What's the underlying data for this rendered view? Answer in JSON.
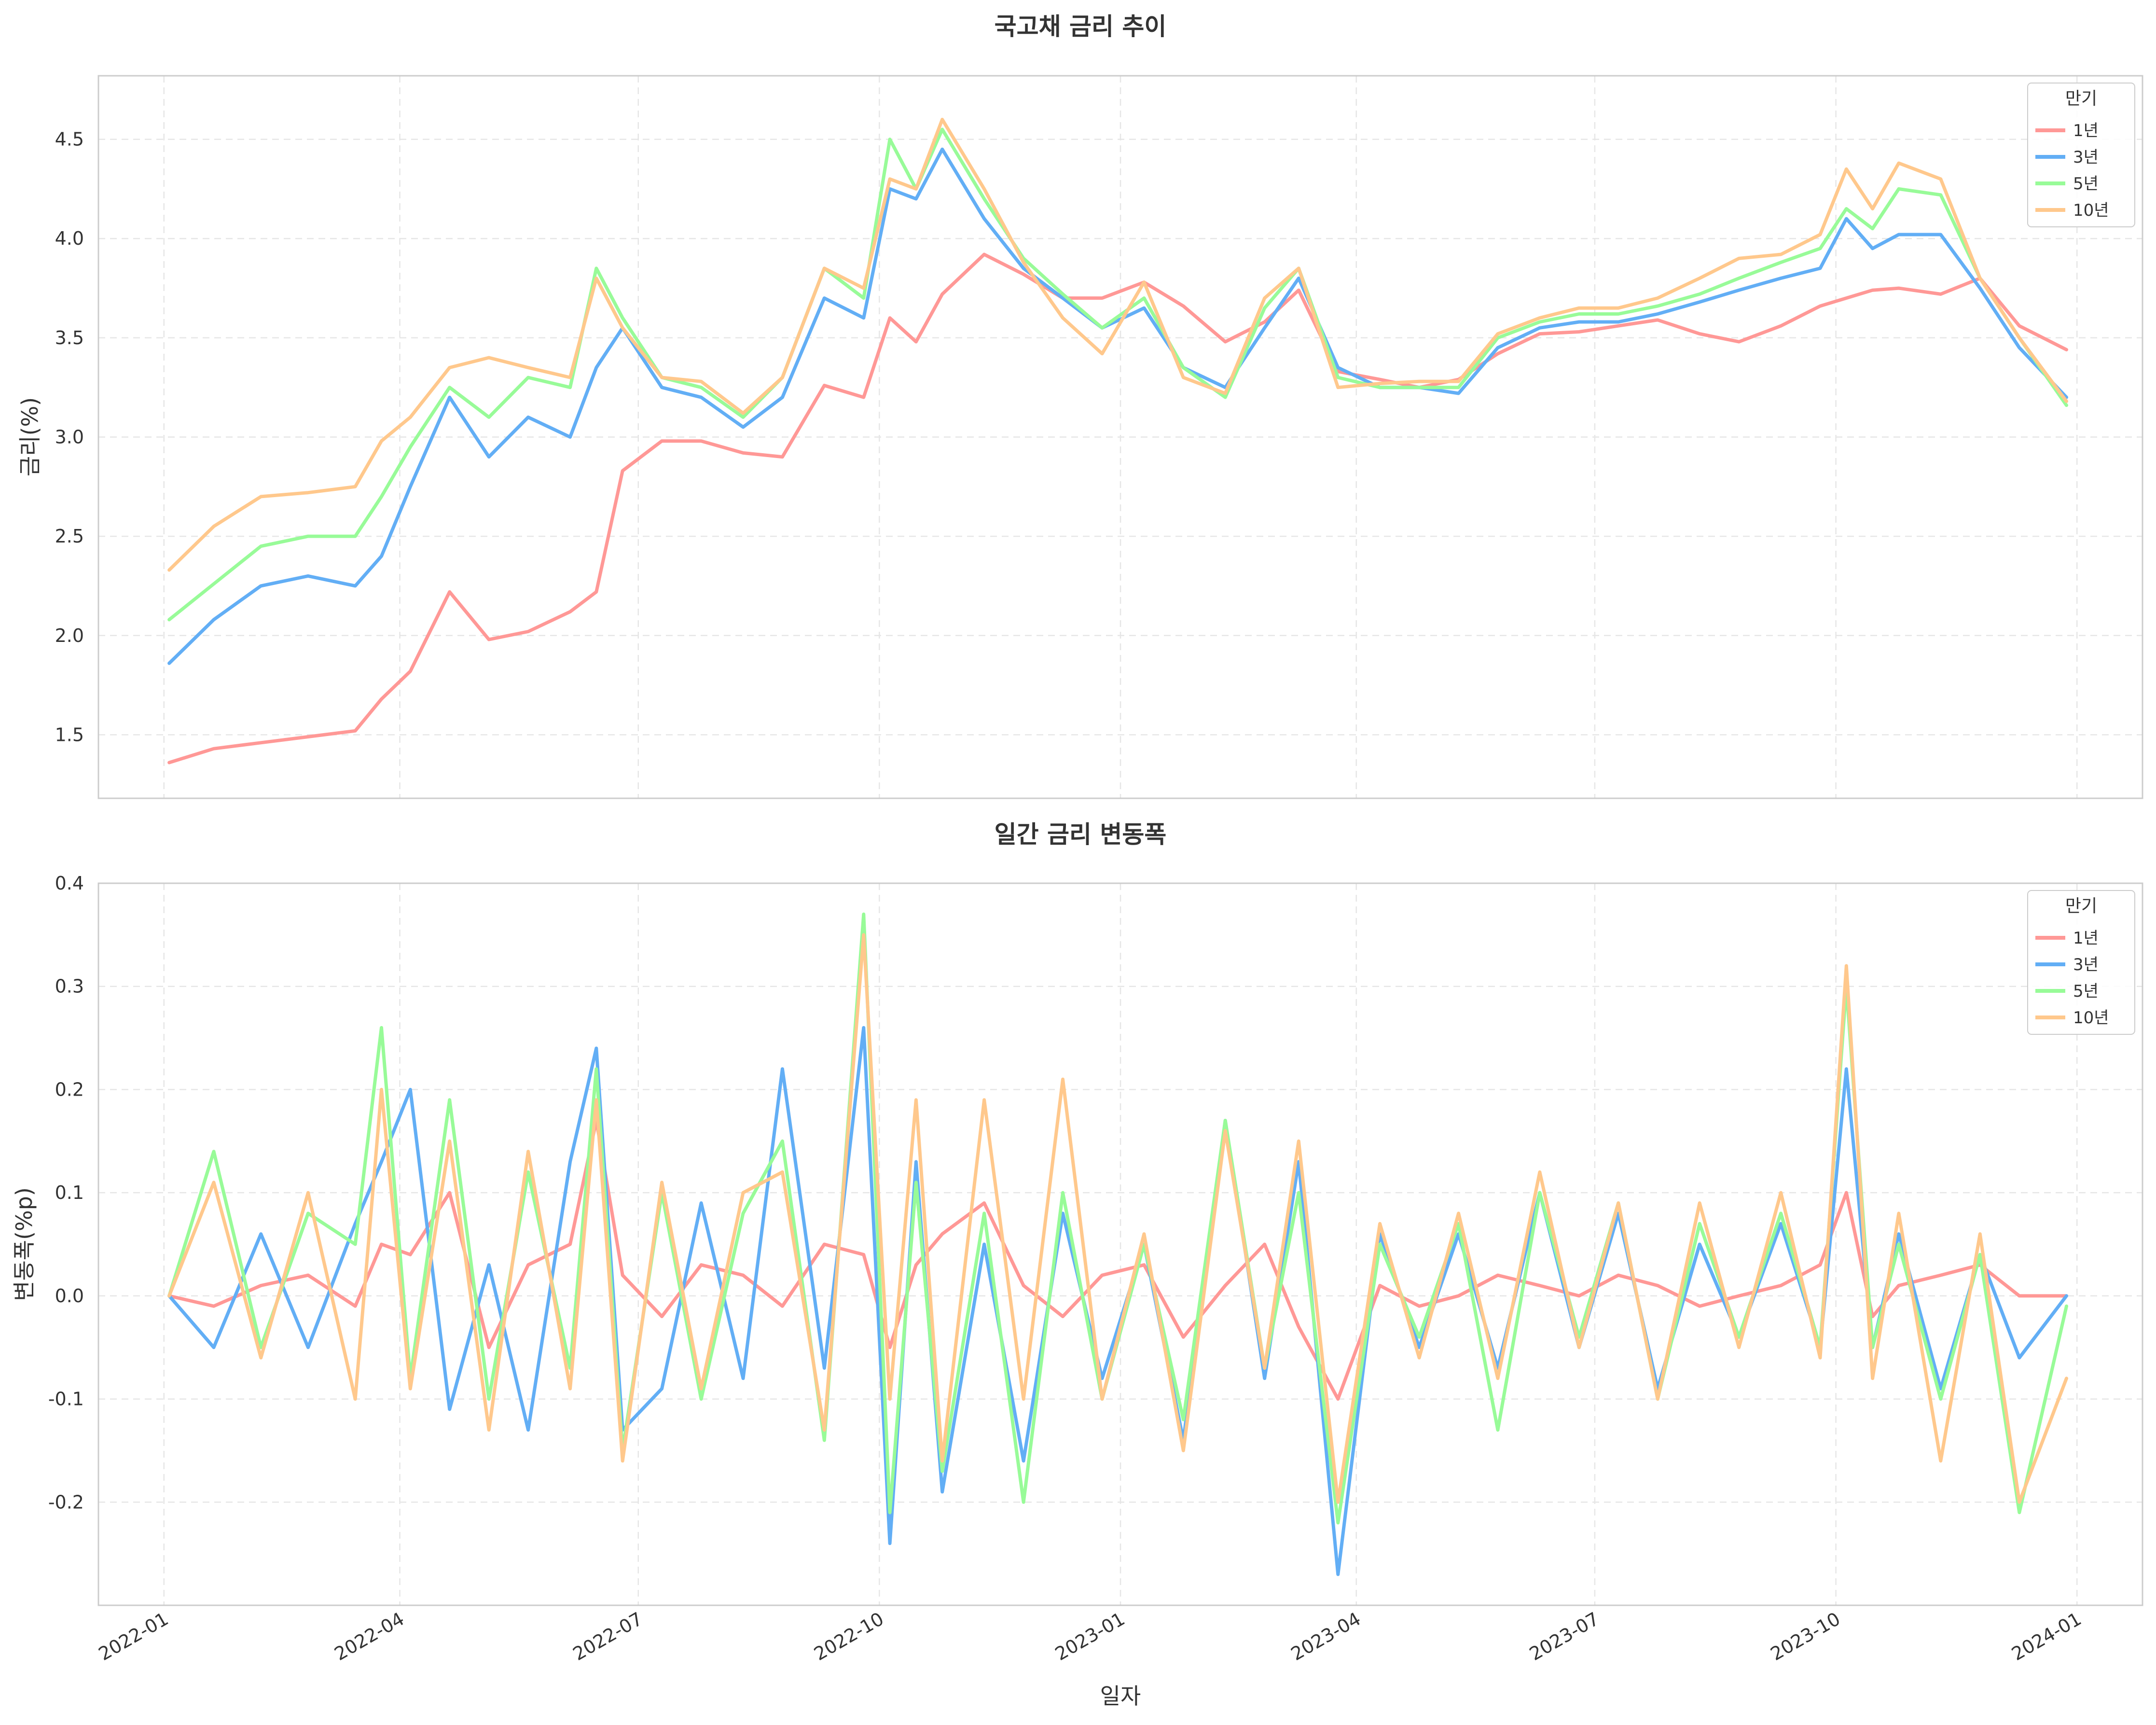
{
  "colors": {
    "y1": "#ff9896",
    "y3": "#62aef5",
    "y5": "#98fb98",
    "y10": "#ffc88c",
    "grid": "#e6e6e6",
    "frame": "#cccccc"
  },
  "chart_data": [
    {
      "type": "line",
      "title": "국고채 금리 추이",
      "xlabel": "",
      "ylabel": "금리(%)",
      "ylim": [
        1.18,
        4.82
      ],
      "yticks": [
        "1.5",
        "2.0",
        "2.5",
        "3.0",
        "3.5",
        "4.0",
        "4.5"
      ],
      "grid": true,
      "legend": {
        "title": "만기",
        "position": "top-right"
      },
      "x": [
        "2022-01-03",
        "2022-01-20",
        "2022-02-07",
        "2022-02-25",
        "2022-03-15",
        "2022-03-25",
        "2022-04-05",
        "2022-04-20",
        "2022-05-05",
        "2022-05-20",
        "2022-06-05",
        "2022-06-15",
        "2022-06-25",
        "2022-07-10",
        "2022-07-25",
        "2022-08-10",
        "2022-08-25",
        "2022-09-10",
        "2022-09-25",
        "2022-10-05",
        "2022-10-15",
        "2022-10-25",
        "2022-11-10",
        "2022-11-25",
        "2022-12-10",
        "2022-12-25",
        "2023-01-10",
        "2023-01-25",
        "2023-02-10",
        "2023-02-25",
        "2023-03-10",
        "2023-03-25",
        "2023-04-10",
        "2023-04-25",
        "2023-05-10",
        "2023-05-25",
        "2023-06-10",
        "2023-06-25",
        "2023-07-10",
        "2023-07-25",
        "2023-08-10",
        "2023-08-25",
        "2023-09-10",
        "2023-09-25",
        "2023-10-05",
        "2023-10-15",
        "2023-10-25",
        "2023-11-10",
        "2023-11-25",
        "2023-12-10",
        "2023-12-28"
      ],
      "series": [
        {
          "name": "1년",
          "values": [
            1.36,
            1.43,
            1.46,
            1.49,
            1.52,
            1.68,
            1.82,
            2.22,
            1.98,
            2.02,
            2.12,
            2.22,
            2.83,
            2.98,
            2.98,
            2.92,
            2.9,
            3.26,
            3.2,
            3.6,
            3.48,
            3.72,
            3.92,
            3.82,
            3.7,
            3.7,
            3.78,
            3.66,
            3.48,
            3.58,
            3.74,
            3.33,
            3.29,
            3.25,
            3.29,
            3.42,
            3.52,
            3.53,
            3.56,
            3.59,
            3.52,
            3.48,
            3.56,
            3.66,
            3.7,
            3.74,
            3.75,
            3.72,
            3.8,
            3.56,
            3.44
          ]
        },
        {
          "name": "3년",
          "values": [
            1.86,
            2.08,
            2.25,
            2.3,
            2.25,
            2.4,
            2.75,
            3.2,
            2.9,
            3.1,
            3.0,
            3.35,
            3.55,
            3.25,
            3.2,
            3.05,
            3.2,
            3.7,
            3.6,
            4.25,
            4.2,
            4.45,
            4.1,
            3.85,
            3.7,
            3.55,
            3.65,
            3.35,
            3.25,
            3.55,
            3.8,
            3.35,
            3.25,
            3.25,
            3.22,
            3.45,
            3.55,
            3.58,
            3.58,
            3.62,
            3.68,
            3.74,
            3.8,
            3.85,
            4.1,
            3.95,
            4.02,
            4.02,
            3.75,
            3.45,
            3.2
          ]
        },
        {
          "name": "5년",
          "values": [
            2.08,
            2.26,
            2.45,
            2.5,
            2.5,
            2.7,
            2.95,
            3.25,
            3.1,
            3.3,
            3.25,
            3.85,
            3.6,
            3.3,
            3.25,
            3.1,
            3.3,
            3.85,
            3.7,
            4.5,
            4.25,
            4.55,
            4.2,
            3.9,
            3.72,
            3.55,
            3.7,
            3.35,
            3.2,
            3.65,
            3.85,
            3.3,
            3.25,
            3.25,
            3.25,
            3.5,
            3.58,
            3.62,
            3.62,
            3.66,
            3.72,
            3.8,
            3.88,
            3.95,
            4.15,
            4.05,
            4.25,
            4.22,
            3.8,
            3.5,
            3.16
          ]
        },
        {
          "name": "10년",
          "values": [
            2.33,
            2.55,
            2.7,
            2.72,
            2.75,
            2.98,
            3.1,
            3.35,
            3.4,
            3.35,
            3.3,
            3.8,
            3.55,
            3.3,
            3.28,
            3.12,
            3.3,
            3.85,
            3.75,
            4.3,
            4.25,
            4.6,
            4.25,
            3.88,
            3.6,
            3.42,
            3.78,
            3.3,
            3.22,
            3.7,
            3.85,
            3.25,
            3.27,
            3.28,
            3.28,
            3.52,
            3.6,
            3.65,
            3.65,
            3.7,
            3.8,
            3.9,
            3.92,
            4.02,
            4.35,
            4.15,
            4.38,
            4.3,
            3.8,
            3.5,
            3.18
          ]
        }
      ]
    },
    {
      "type": "line",
      "title": "일간 금리 변동폭",
      "xlabel": "일자",
      "ylabel": "변동폭(%p)",
      "ylim": [
        -0.3,
        0.4
      ],
      "yticks": [
        "-0.2",
        "-0.1",
        "0.0",
        "0.1",
        "0.2",
        "0.3",
        "0.4"
      ],
      "xticks": [
        "2022-01",
        "2022-04",
        "2022-07",
        "2022-10",
        "2023-01",
        "2023-04",
        "2023-07",
        "2023-10",
        "2024-01"
      ],
      "grid": true,
      "legend": {
        "title": "만기",
        "position": "top-right"
      },
      "x": [
        "2022-01-03",
        "2022-01-20",
        "2022-02-07",
        "2022-02-25",
        "2022-03-15",
        "2022-03-25",
        "2022-04-05",
        "2022-04-20",
        "2022-05-05",
        "2022-05-20",
        "2022-06-05",
        "2022-06-15",
        "2022-06-25",
        "2022-07-10",
        "2022-07-25",
        "2022-08-10",
        "2022-08-25",
        "2022-09-10",
        "2022-09-25",
        "2022-10-05",
        "2022-10-15",
        "2022-10-25",
        "2022-11-10",
        "2022-11-25",
        "2022-12-10",
        "2022-12-25",
        "2023-01-10",
        "2023-01-25",
        "2023-02-10",
        "2023-02-25",
        "2023-03-10",
        "2023-03-25",
        "2023-04-10",
        "2023-04-25",
        "2023-05-10",
        "2023-05-25",
        "2023-06-10",
        "2023-06-25",
        "2023-07-10",
        "2023-07-25",
        "2023-08-10",
        "2023-08-25",
        "2023-09-10",
        "2023-09-25",
        "2023-10-05",
        "2023-10-15",
        "2023-10-25",
        "2023-11-10",
        "2023-11-25",
        "2023-12-10",
        "2023-12-28"
      ],
      "series": [
        {
          "name": "1년",
          "values": [
            0.0,
            -0.01,
            0.01,
            0.02,
            -0.01,
            0.05,
            0.04,
            0.1,
            -0.05,
            0.03,
            0.05,
            0.17,
            0.02,
            -0.02,
            0.03,
            0.02,
            -0.01,
            0.05,
            0.04,
            -0.05,
            0.03,
            0.06,
            0.09,
            0.01,
            -0.02,
            0.02,
            0.03,
            -0.04,
            0.01,
            0.05,
            -0.03,
            -0.1,
            0.01,
            -0.01,
            0.0,
            0.02,
            0.01,
            0.0,
            0.02,
            0.01,
            -0.01,
            0.0,
            0.01,
            0.03,
            0.1,
            -0.02,
            0.01,
            0.02,
            0.03,
            0.0,
            0.0
          ]
        },
        {
          "name": "3년",
          "values": [
            0.0,
            -0.05,
            0.06,
            -0.05,
            0.07,
            0.13,
            0.2,
            -0.11,
            0.03,
            -0.13,
            0.13,
            0.24,
            -0.13,
            -0.09,
            0.09,
            -0.08,
            0.22,
            -0.07,
            0.26,
            -0.24,
            0.13,
            -0.19,
            0.05,
            -0.16,
            0.08,
            -0.08,
            0.05,
            -0.14,
            0.17,
            -0.08,
            0.13,
            -0.27,
            0.06,
            -0.05,
            0.06,
            -0.07,
            0.1,
            -0.05,
            0.08,
            -0.09,
            0.05,
            -0.04,
            0.07,
            -0.05,
            0.22,
            -0.05,
            0.06,
            -0.09,
            0.04,
            -0.06,
            0.0
          ]
        },
        {
          "name": "5년",
          "values": [
            0.0,
            0.14,
            -0.05,
            0.08,
            0.05,
            0.26,
            -0.08,
            0.19,
            -0.1,
            0.12,
            -0.07,
            0.22,
            -0.15,
            0.1,
            -0.1,
            0.08,
            0.15,
            -0.14,
            0.37,
            -0.21,
            0.11,
            -0.17,
            0.08,
            -0.2,
            0.1,
            -0.1,
            0.05,
            -0.12,
            0.17,
            -0.07,
            0.1,
            -0.22,
            0.05,
            -0.04,
            0.07,
            -0.13,
            0.1,
            -0.04,
            0.09,
            -0.1,
            0.07,
            -0.04,
            0.08,
            -0.05,
            0.3,
            -0.05,
            0.05,
            -0.1,
            0.04,
            -0.21,
            -0.01
          ]
        },
        {
          "name": "10년",
          "values": [
            0.0,
            0.11,
            -0.06,
            0.1,
            -0.1,
            0.2,
            -0.09,
            0.15,
            -0.13,
            0.14,
            -0.09,
            0.19,
            -0.16,
            0.11,
            -0.09,
            0.1,
            0.12,
            -0.13,
            0.35,
            -0.1,
            0.19,
            -0.16,
            0.19,
            -0.1,
            0.21,
            -0.1,
            0.06,
            -0.15,
            0.16,
            -0.07,
            0.15,
            -0.2,
            0.07,
            -0.06,
            0.08,
            -0.08,
            0.12,
            -0.05,
            0.09,
            -0.1,
            0.09,
            -0.05,
            0.1,
            -0.06,
            0.32,
            -0.08,
            0.08,
            -0.16,
            0.06,
            -0.2,
            -0.08
          ]
        }
      ]
    }
  ]
}
